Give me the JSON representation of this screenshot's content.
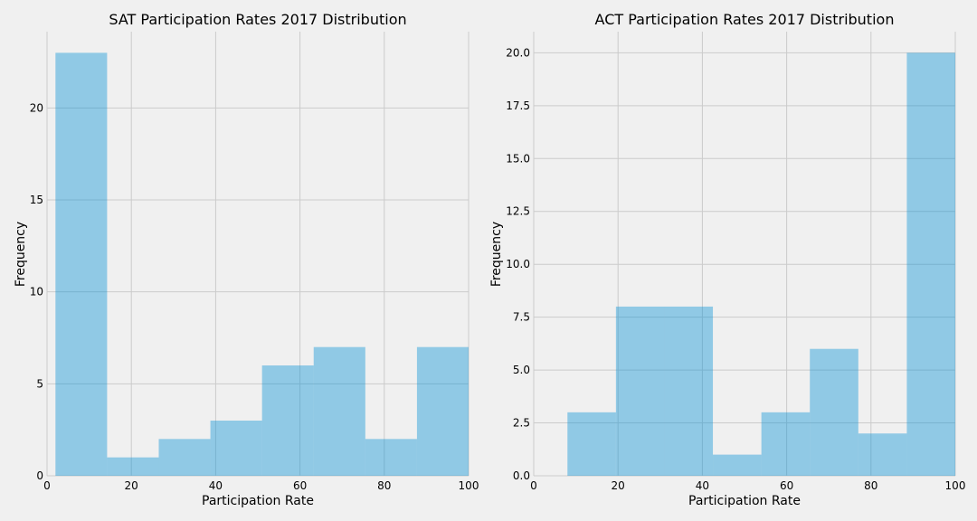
{
  "chart_data": [
    {
      "type": "bar",
      "title": "SAT Participation Rates 2017 Distribution",
      "xlabel": "Participation Rate",
      "ylabel": "Frequency",
      "xlim": [
        0,
        100
      ],
      "ylim": [
        0,
        24.15
      ],
      "xticks": [
        0,
        20,
        40,
        60,
        80,
        100
      ],
      "yticks": [
        0,
        5,
        10,
        15,
        20
      ],
      "ytick_labels": [
        "0",
        "5",
        "10",
        "15",
        "20"
      ],
      "grid": true,
      "bin_edges": [
        2,
        14.25,
        26.5,
        38.75,
        51,
        63.25,
        75.5,
        87.75,
        100
      ],
      "values": [
        23,
        1,
        2,
        3,
        6,
        7,
        2,
        7
      ],
      "color": "#008fd5"
    },
    {
      "type": "bar",
      "title": "ACT Participation Rates 2017 Distribution",
      "xlabel": "Participation Rate",
      "ylabel": "Frequency",
      "xlim": [
        0,
        100
      ],
      "ylim": [
        0,
        21
      ],
      "xticks": [
        0,
        20,
        40,
        60,
        80,
        100
      ],
      "yticks": [
        0,
        2.5,
        5,
        7.5,
        10,
        12.5,
        15,
        17.5,
        20
      ],
      "ytick_labels": [
        "0.0",
        "2.5",
        "5.0",
        "7.5",
        "10.0",
        "12.5",
        "15.0",
        "17.5",
        "20.0"
      ],
      "grid": true,
      "bin_edges": [
        8,
        19.5,
        31,
        42.5,
        54,
        65.5,
        77,
        88.5,
        100
      ],
      "values": [
        3,
        8,
        8,
        1,
        3,
        6,
        2,
        20
      ],
      "color": "#008fd5"
    }
  ]
}
